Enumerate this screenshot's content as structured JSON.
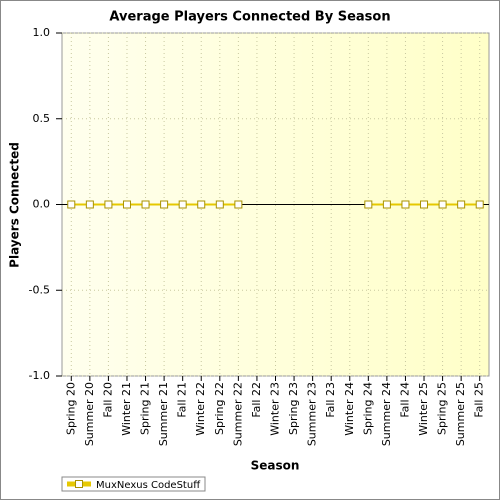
{
  "chart_data": {
    "type": "line",
    "title": "Average Players Connected By Season",
    "x_label": "Season",
    "y_label": "Players Connected",
    "categories": [
      "Spring 20",
      "Summer 20",
      "Fall 20",
      "Winter 21",
      "Spring 21",
      "Summer 21",
      "Fall 21",
      "Winter 22",
      "Spring 22",
      "Summer 22",
      "Fall 22",
      "Winter 23",
      "Spring 23",
      "Summer 23",
      "Fall 23",
      "Winter 24",
      "Spring 24",
      "Summer 24",
      "Fall 24",
      "Winter 25",
      "Spring 25",
      "Summer 25",
      "Fall 25"
    ],
    "series": [
      {
        "name": "MuxNexus CodeStuff",
        "color": "#e6c800",
        "values": [
          0,
          0,
          0,
          0,
          0,
          0,
          0,
          0,
          0,
          0,
          null,
          null,
          null,
          null,
          null,
          null,
          0,
          0,
          0,
          0,
          0,
          0,
          0
        ]
      }
    ],
    "ylim": [
      -1,
      1
    ],
    "yticks": [
      {
        "value": -1,
        "label": "-1.0"
      },
      {
        "value": -0.5,
        "label": "-0.5"
      },
      {
        "value": 0,
        "label": "0.0"
      },
      {
        "value": 0.5,
        "label": "0.5"
      },
      {
        "value": 1,
        "label": "1.0"
      }
    ],
    "grid": true,
    "legend": "bottom-left"
  }
}
